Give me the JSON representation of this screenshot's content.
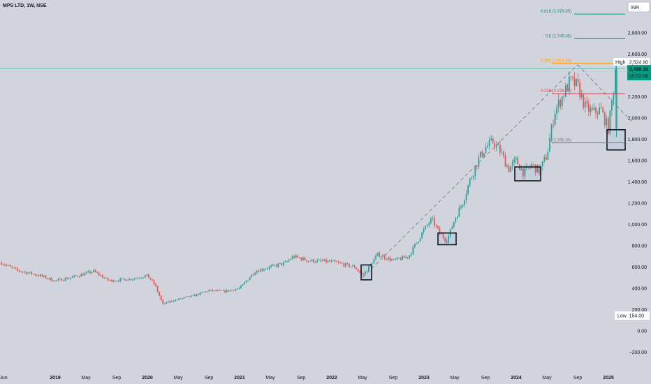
{
  "header": {
    "symbol": "MPS LTD, 1W, NSE"
  },
  "currency_badge": "INR",
  "colors": {
    "up": "#26a69a",
    "down": "#ef5350",
    "background": "#d1d4dc",
    "last_price": "#089981",
    "fib_0618": "#089981",
    "fib_05": "#089981",
    "fib_0382": "#ff9800",
    "fib_0236": "#f23645",
    "fib_0": "#787b86",
    "trend": "#787b86"
  },
  "chart_data": {
    "type": "candlestick",
    "title": "",
    "xlabel": "",
    "ylabel": "",
    "ylim": [
      -260,
      3120
    ],
    "y_ticks": [
      -200,
      0,
      200,
      400,
      600,
      800,
      1000,
      1200,
      1400,
      1600,
      1800,
      2000,
      2200,
      2400,
      2600,
      2800
    ],
    "y_tick_labels": [
      "−200.00",
      "0.00",
      "200.00",
      "400.00",
      "600.00",
      "800.00",
      "1,000.00",
      "1,200.00",
      "1,400.00",
      "1,600.00",
      "1,800.00",
      "2,000.00",
      "2,200.00",
      "2,400.00",
      "2,600.00",
      "2,800.00"
    ],
    "x_range": [
      "2018-06",
      "2025-04"
    ],
    "x_ticks": [
      {
        "label": "Jun",
        "date": "2018-06",
        "bold": false
      },
      {
        "label": "2019",
        "date": "2019-01",
        "bold": true
      },
      {
        "label": "May",
        "date": "2019-05",
        "bold": false
      },
      {
        "label": "Sep",
        "date": "2019-09",
        "bold": false
      },
      {
        "label": "2020",
        "date": "2020-01",
        "bold": true
      },
      {
        "label": "May",
        "date": "2020-05",
        "bold": false
      },
      {
        "label": "Sep",
        "date": "2020-09",
        "bold": false
      },
      {
        "label": "2021",
        "date": "2021-01",
        "bold": true
      },
      {
        "label": "May",
        "date": "2021-05",
        "bold": false
      },
      {
        "label": "Sep",
        "date": "2021-09",
        "bold": false
      },
      {
        "label": "2022",
        "date": "2022-01",
        "bold": true
      },
      {
        "label": "May",
        "date": "2022-05",
        "bold": false
      },
      {
        "label": "Sep",
        "date": "2022-09",
        "bold": false
      },
      {
        "label": "2023",
        "date": "2023-01",
        "bold": true
      },
      {
        "label": "May",
        "date": "2023-05",
        "bold": false
      },
      {
        "label": "Sep",
        "date": "2023-09",
        "bold": false
      },
      {
        "label": "2024",
        "date": "2024-01",
        "bold": true
      },
      {
        "label": "May",
        "date": "2024-05",
        "bold": false
      },
      {
        "label": "Sep",
        "date": "2024-09",
        "bold": false
      },
      {
        "label": "2025",
        "date": "2025-01",
        "bold": true
      }
    ],
    "price_path": [
      [
        "2018-06",
        640
      ],
      [
        "2018-08",
        570
      ],
      [
        "2018-11",
        520
      ],
      [
        "2019-01",
        470
      ],
      [
        "2019-03",
        500
      ],
      [
        "2019-06",
        560
      ],
      [
        "2019-08",
        470
      ],
      [
        "2019-11",
        490
      ],
      [
        "2020-01",
        520
      ],
      [
        "2020-02",
        430
      ],
      [
        "2020-03",
        250
      ],
      [
        "2020-04",
        280
      ],
      [
        "2020-07",
        330
      ],
      [
        "2020-09",
        380
      ],
      [
        "2020-11",
        370
      ],
      [
        "2021-01",
        400
      ],
      [
        "2021-03",
        560
      ],
      [
        "2021-05",
        600
      ],
      [
        "2021-07",
        640
      ],
      [
        "2021-08",
        700
      ],
      [
        "2021-10",
        660
      ],
      [
        "2022-01",
        650
      ],
      [
        "2022-04",
        600
      ],
      [
        "2022-05",
        520
      ],
      [
        "2022-07",
        720
      ],
      [
        "2022-09",
        660
      ],
      [
        "2022-11",
        700
      ],
      [
        "2023-01",
        950
      ],
      [
        "2023-02",
        1050
      ],
      [
        "2023-03",
        920
      ],
      [
        "2023-04",
        850
      ],
      [
        "2023-05",
        1050
      ],
      [
        "2023-06",
        1200
      ],
      [
        "2023-07",
        1420
      ],
      [
        "2023-08",
        1600
      ],
      [
        "2023-09",
        1720
      ],
      [
        "2023-10",
        1780
      ],
      [
        "2023-11",
        1680
      ],
      [
        "2023-12",
        1520
      ],
      [
        "2024-01",
        1600
      ],
      [
        "2024-02",
        1480
      ],
      [
        "2024-03",
        1560
      ],
      [
        "2024-04",
        1500
      ],
      [
        "2024-05",
        1650
      ],
      [
        "2024-06",
        2060
      ],
      [
        "2024-07",
        2200
      ],
      [
        "2024-08",
        2350
      ],
      [
        "2024-09",
        2300
      ],
      [
        "2024-10",
        2100
      ],
      [
        "2024-11",
        2050
      ],
      [
        "2024-12",
        2080
      ],
      [
        "2025-01",
        1900
      ],
      [
        "2025-02",
        2458
      ]
    ],
    "trend_lines": [
      {
        "from": [
          "2022-05",
          500
        ],
        "to": [
          "2024-09",
          2500
        ]
      },
      {
        "from": [
          "2024-09",
          2500
        ],
        "to": [
          "2025-04",
          1970
        ]
      }
    ],
    "boxes": [
      {
        "x0": "2022-05",
        "x1": "2022-06",
        "y0": 480,
        "y1": 620
      },
      {
        "x0": "2023-03",
        "x1": "2023-05",
        "y0": 810,
        "y1": 920
      },
      {
        "x0": "2024-01",
        "x1": "2024-04",
        "y0": 1410,
        "y1": 1540
      },
      {
        "x0": "2025-01",
        "x1": "2025-03",
        "y0": 1700,
        "y1": 1890
      }
    ],
    "fib_levels": [
      {
        "ratio": "0.618",
        "value": 2976.05,
        "label": "0.618 (2,976.05)",
        "color": "#089981"
      },
      {
        "ratio": "0.5",
        "value": 2745.05,
        "label": "0.5 (2,745.05)",
        "color": "#089981"
      },
      {
        "ratio": "0.382",
        "value": 2514.1,
        "label": "0.382 (2,514.10)",
        "color": "#ff9800"
      },
      {
        "ratio": "0.236",
        "value": 2228.35,
        "label": "0.236 (2,228.35)",
        "color": "#f23645"
      },
      {
        "ratio": "0",
        "value": 1766.35,
        "label": "0 (1,766.35)",
        "color": "#787b86"
      }
    ],
    "high": {
      "label": "High",
      "value": 2524.9,
      "value_label": "2,524.90"
    },
    "low": {
      "label": "Low",
      "value": 154.0,
      "value_label": "154.00"
    },
    "last_price": {
      "value": 2458.3,
      "value_label": "2,458.30",
      "countdown": "05:02:06"
    },
    "hline": {
      "value": 2458.3,
      "color": "#26a69a"
    }
  }
}
